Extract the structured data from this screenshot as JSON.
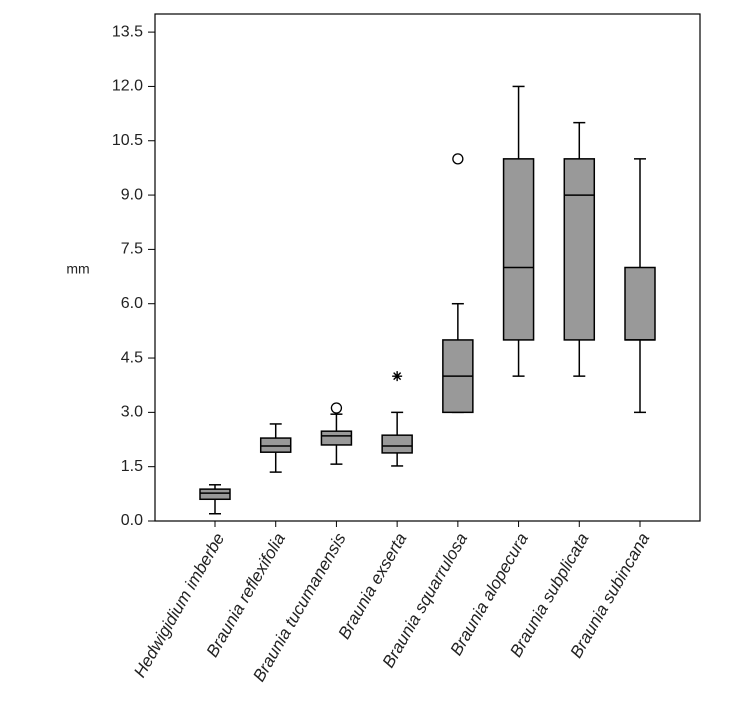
{
  "chart_data": {
    "type": "box",
    "ylabel": "mm",
    "categories": [
      "Hedwigidium imberbe",
      "Braunia reflexifolia",
      "Braunia tucumanensis",
      "Braunia exserta",
      "Braunia squarrulosa",
      "Braunia alopecura",
      "Braunia subplicata",
      "Braunia subincana"
    ],
    "boxes": [
      {
        "min": 0.2,
        "q1": 0.6,
        "median": 0.77,
        "q3": 0.88,
        "max": 1.0
      },
      {
        "min": 1.35,
        "q1": 1.9,
        "median": 2.07,
        "q3": 2.29,
        "max": 2.68
      },
      {
        "min": 1.57,
        "q1": 2.1,
        "median": 2.35,
        "q3": 2.48,
        "max": 2.95
      },
      {
        "min": 1.52,
        "q1": 1.88,
        "median": 2.07,
        "q3": 2.37,
        "max": 3.0
      },
      {
        "min": 3.0,
        "q1": 3.0,
        "median": 4.0,
        "q3": 5.0,
        "max": 6.0
      },
      {
        "min": 4.0,
        "q1": 5.0,
        "median": 7.0,
        "q3": 10.0,
        "max": 12.0
      },
      {
        "min": 4.0,
        "q1": 5.0,
        "median": 9.0,
        "q3": 10.0,
        "max": 11.0
      },
      {
        "min": 3.0,
        "q1": 5.0,
        "median": 5.0,
        "q3": 7.0,
        "max": 10.0
      }
    ],
    "outliers": [
      [],
      [],
      [
        3.12
      ],
      [],
      [
        10.0
      ],
      [],
      [],
      []
    ],
    "extremes": [
      [],
      [],
      [],
      [
        4.0
      ],
      [],
      [],
      [],
      []
    ],
    "color": "#999999",
    "ylim": [
      0,
      14
    ],
    "yticks": [
      {
        "value": 0,
        "label": "0.0"
      },
      {
        "value": 1.5,
        "label": "1.5"
      },
      {
        "value": 3,
        "label": "3.0"
      },
      {
        "value": 4.5,
        "label": "4.5"
      },
      {
        "value": 6,
        "label": "6.0"
      },
      {
        "value": 7.5,
        "label": "7.5"
      },
      {
        "value": 9,
        "label": "9.0"
      },
      {
        "value": 10.5,
        "label": "10.5"
      },
      {
        "value": 12,
        "label": "12.0"
      },
      {
        "value": 13.5,
        "label": "13.5"
      }
    ]
  }
}
